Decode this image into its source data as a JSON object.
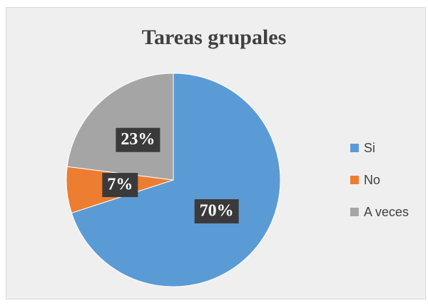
{
  "chart_data": {
    "type": "pie",
    "title": "Tareas grupales",
    "categories": [
      "Si",
      "No",
      "A veces"
    ],
    "values": [
      70,
      7,
      23
    ],
    "value_labels": [
      "70%",
      "7%",
      "23%"
    ],
    "colors": [
      "#5b9bd5",
      "#ed7d31",
      "#a5a5a5"
    ],
    "legend": "right"
  }
}
